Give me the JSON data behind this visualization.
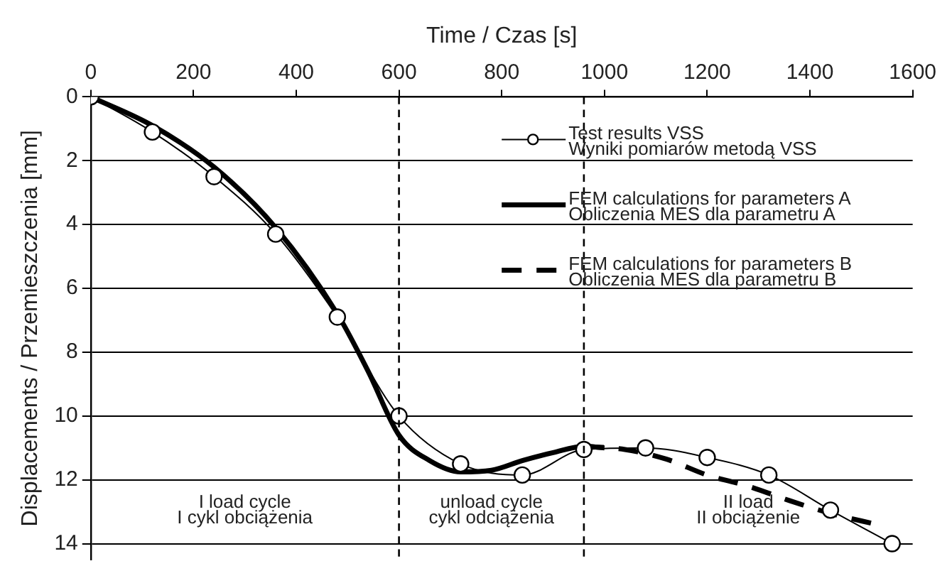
{
  "chart_data": {
    "type": "line",
    "xlabel": "Time / Czas [s]",
    "ylabel": "Displacements / Przemieszczenia [mm]",
    "xlim": [
      0,
      1600
    ],
    "xticks": [
      0,
      200,
      400,
      600,
      800,
      1000,
      1200,
      1400,
      1600
    ],
    "ylim": [
      14.5,
      0
    ],
    "yticks": [
      0,
      2,
      4,
      6,
      8,
      10,
      12,
      14
    ],
    "grid": "y",
    "legend": "top right",
    "series": [
      {
        "name": "Test results VSS\nWyniki pomiarów metodą VSS",
        "color": "#000000",
        "marker": "circle",
        "line_style": "solid",
        "x": [
          0,
          120,
          240,
          360,
          480,
          600,
          720,
          840,
          960,
          1080,
          1200,
          1320,
          1440,
          1560
        ],
        "values": [
          0,
          1.1,
          2.5,
          4.3,
          6.9,
          10.0,
          11.5,
          11.85,
          11.05,
          11.0,
          11.3,
          11.85,
          12.95,
          14.0
        ]
      },
      {
        "name": "FEM calculations for parameters A\nObliczenia MES dla parametru A",
        "color": "#000000",
        "marker": "none",
        "line_style": "solid",
        "x": [
          0,
          120,
          240,
          360,
          480,
          540,
          600,
          660,
          720,
          780,
          840,
          900,
          960,
          1000
        ],
        "values": [
          0,
          0.9,
          2.2,
          4.1,
          6.8,
          8.6,
          10.6,
          11.4,
          11.75,
          11.7,
          11.4,
          11.15,
          10.95,
          11.0
        ]
      },
      {
        "name": "FEM calculations for parameters B\nObliczenia MES dla parametru B",
        "color": "#000000",
        "marker": "none",
        "line_style": "dashed",
        "x": [
          960,
          1040,
          1120,
          1200,
          1280,
          1360,
          1440,
          1530
        ],
        "values": [
          10.95,
          11.05,
          11.35,
          11.85,
          12.2,
          12.65,
          13.05,
          13.4
        ]
      }
    ],
    "ref_lines": [
      {
        "axis": "x",
        "value": 600,
        "line_style": "dashed",
        "color": "#000000"
      },
      {
        "axis": "x",
        "value": 960,
        "line_style": "dashed",
        "color": "#000000"
      }
    ],
    "annotations": [
      "I load cycle\nI cykl obciążenia",
      "unload cycle\ncykl odciążenia",
      "II load\nII obciążenie"
    ]
  }
}
